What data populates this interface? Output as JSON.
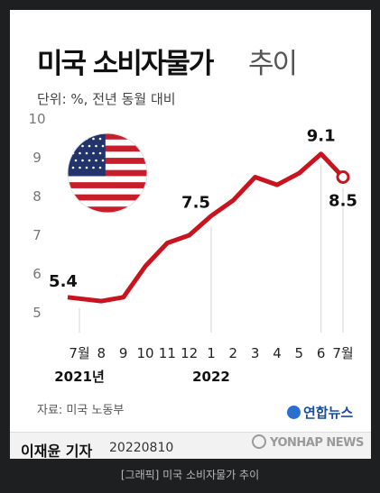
{
  "header": {
    "title_main": "미국 소비자물가",
    "title_sub": "추이",
    "unit": "단위: %, 전년 동월 대비"
  },
  "flag_icon": "us-flag-icon",
  "chart_data": {
    "type": "line",
    "x": [
      "7월",
      "8",
      "9",
      "10",
      "11",
      "12",
      "1",
      "2",
      "3",
      "4",
      "5",
      "6",
      "7월"
    ],
    "year_labels": [
      {
        "label": "2021년",
        "at": 0
      },
      {
        "label": "2022",
        "at": 6
      }
    ],
    "series": [
      {
        "values": [
          5.4,
          5.3,
          5.4,
          6.2,
          6.8,
          7.0,
          7.5,
          7.9,
          8.5,
          8.3,
          8.6,
          9.1,
          8.5
        ]
      }
    ],
    "data_labels": [
      {
        "index": 0,
        "text": "5.4"
      },
      {
        "index": 6,
        "text": "7.5"
      },
      {
        "index": 11,
        "text": "9.1"
      },
      {
        "index": 12,
        "text": "8.5"
      }
    ],
    "yticks": [
      5,
      6,
      7,
      8,
      9,
      10
    ],
    "ylim": [
      5,
      10
    ],
    "line_color": "#c8141e",
    "grid": false
  },
  "source": "자료: 미국 노동부",
  "logo": "연합뉴스",
  "footer": {
    "reporter": "이재윤 기자",
    "date": "20220810"
  },
  "watermark": "YONHAP NEWS",
  "caption": "[그래픽] 미국 소비자물가 추이"
}
